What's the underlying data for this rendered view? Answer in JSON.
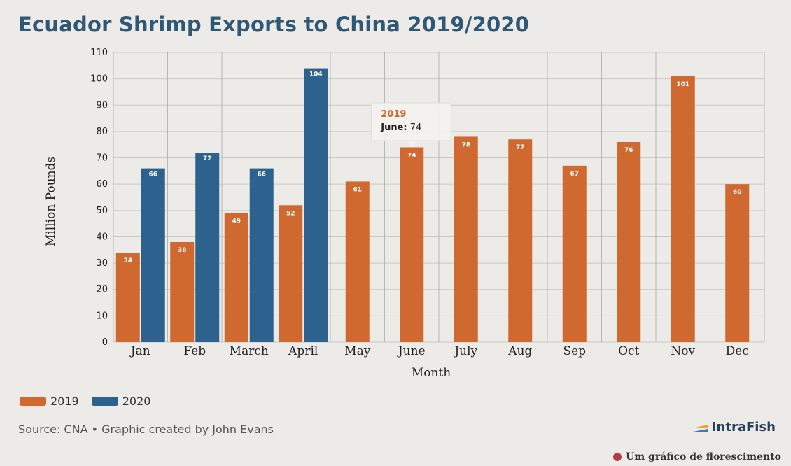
{
  "chart_data": {
    "type": "bar",
    "title": "Ecuador Shrimp Exports to China 2019/2020",
    "xlabel": "Month",
    "ylabel": "Million Pounds",
    "categories": [
      "Jan",
      "Feb",
      "March",
      "April",
      "May",
      "June",
      "July",
      "Aug",
      "Sep",
      "Oct",
      "Nov",
      "Dec"
    ],
    "series": [
      {
        "name": "2019",
        "color": "#d0692f",
        "values": [
          34,
          38,
          49,
          52,
          61,
          74,
          78,
          77,
          67,
          76,
          101,
          60
        ]
      },
      {
        "name": "2020",
        "color": "#2c628d",
        "values": [
          66,
          72,
          66,
          104,
          null,
          null,
          null,
          null,
          null,
          null,
          null,
          null
        ]
      }
    ],
    "ylim": [
      0,
      110
    ],
    "yticks": [
      0,
      10,
      20,
      30,
      40,
      50,
      60,
      70,
      80,
      90,
      100,
      110
    ],
    "grid": true,
    "legend_position": "bottom-left",
    "tooltip": {
      "series": "2019",
      "category": "June",
      "label": "June:",
      "value": "74"
    }
  },
  "source": "Source: CNA • Graphic created by John Evans",
  "logo": {
    "text": "IntraFish"
  },
  "watermark": {
    "text": "Um gráfico de florescimento",
    "icon": "flower-icon"
  }
}
